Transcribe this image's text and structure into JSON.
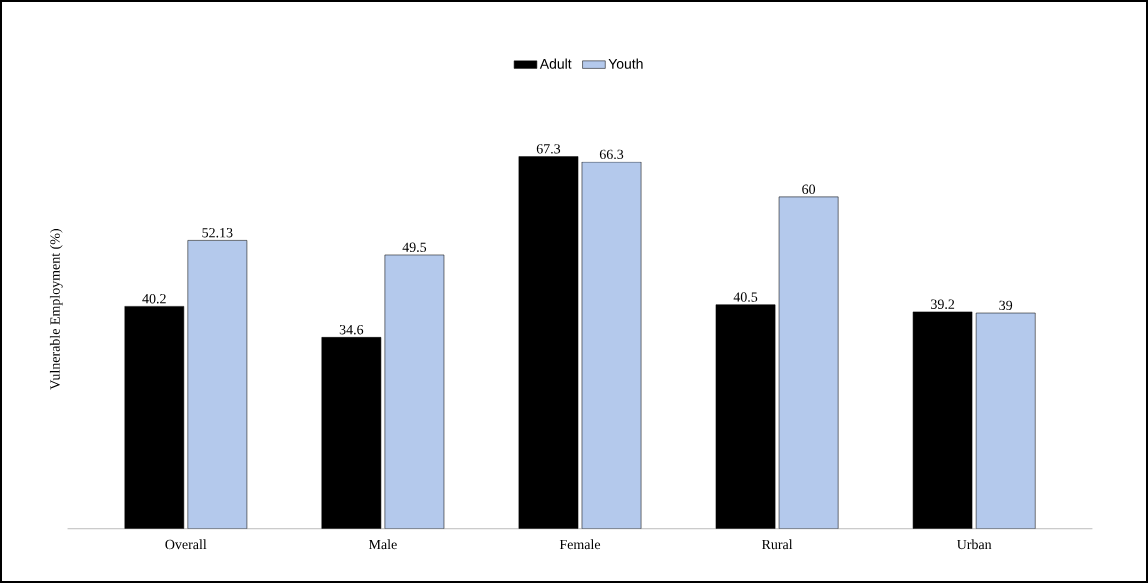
{
  "chart_data": {
    "type": "bar",
    "ylabel": "Vulnerable Employment (%)",
    "categories": [
      "Overall",
      "Male",
      "Female",
      "Rural",
      "Urban"
    ],
    "series": [
      {
        "name": "Adult",
        "color": "#000000",
        "values": [
          40.2,
          34.6,
          67.3,
          40.5,
          39.2
        ]
      },
      {
        "name": "Youth",
        "color": "#b4c9ec",
        "values": [
          52.13,
          49.5,
          66.3,
          60,
          39
        ]
      }
    ],
    "data_labels": true,
    "legend": "top"
  }
}
